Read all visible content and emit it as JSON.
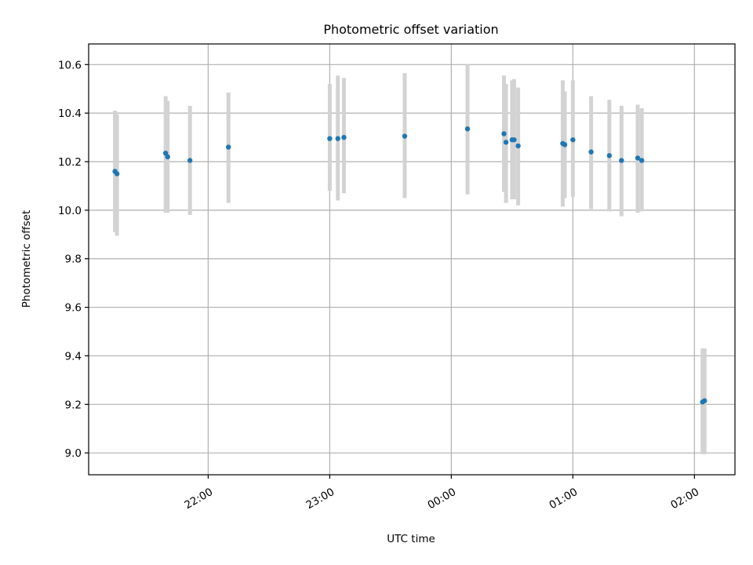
{
  "chart_data": {
    "type": "scatter",
    "title": "Photometric offset variation",
    "xlabel": "UTC time",
    "ylabel": "Photometric offset",
    "xlim": [
      "21:01",
      "02:20"
    ],
    "ylim": [
      8.91,
      10.685
    ],
    "grid": true,
    "x_ticks": [
      "22:00",
      "23:00",
      "00:00",
      "01:00",
      "02:00"
    ],
    "y_ticks": [
      "9.0",
      "9.2",
      "9.4",
      "9.6",
      "9.8",
      "10.0",
      "10.2",
      "10.4",
      "10.6"
    ],
    "point_color": "#1f77b4",
    "errorbar_color": "#d3d3d3",
    "points": [
      {
        "x": "21:14",
        "y": 10.16,
        "ylow": 9.91,
        "yhigh": 10.41
      },
      {
        "x": "21:15",
        "y": 10.15,
        "ylow": 9.895,
        "yhigh": 10.395
      },
      {
        "x": "21:39",
        "y": 10.235,
        "ylow": 9.99,
        "yhigh": 10.47
      },
      {
        "x": "21:40",
        "y": 10.22,
        "ylow": 9.99,
        "yhigh": 10.45
      },
      {
        "x": "21:51",
        "y": 10.205,
        "ylow": 9.98,
        "yhigh": 10.43
      },
      {
        "x": "22:10",
        "y": 10.26,
        "ylow": 10.03,
        "yhigh": 10.485
      },
      {
        "x": "23:00",
        "y": 10.295,
        "ylow": 10.08,
        "yhigh": 10.52
      },
      {
        "x": "23:04",
        "y": 10.295,
        "ylow": 10.04,
        "yhigh": 10.555
      },
      {
        "x": "23:07",
        "y": 10.3,
        "ylow": 10.07,
        "yhigh": 10.545
      },
      {
        "x": "23:37",
        "y": 10.305,
        "ylow": 10.05,
        "yhigh": 10.565
      },
      {
        "x": "00:08",
        "y": 10.335,
        "ylow": 10.065,
        "yhigh": 10.6
      },
      {
        "x": "00:26",
        "y": 10.315,
        "ylow": 10.075,
        "yhigh": 10.555
      },
      {
        "x": "00:27",
        "y": 10.28,
        "ylow": 10.03,
        "yhigh": 10.52
      },
      {
        "x": "00:30",
        "y": 10.29,
        "ylow": 10.045,
        "yhigh": 10.535
      },
      {
        "x": "00:31",
        "y": 10.29,
        "ylow": 10.045,
        "yhigh": 10.54
      },
      {
        "x": "00:33",
        "y": 10.265,
        "ylow": 10.02,
        "yhigh": 10.505
      },
      {
        "x": "00:55",
        "y": 10.275,
        "ylow": 10.015,
        "yhigh": 10.535
      },
      {
        "x": "00:56",
        "y": 10.27,
        "ylow": 10.05,
        "yhigh": 10.49
      },
      {
        "x": "01:00",
        "y": 10.29,
        "ylow": 10.055,
        "yhigh": 10.535
      },
      {
        "x": "01:09",
        "y": 10.24,
        "ylow": 10.005,
        "yhigh": 10.47
      },
      {
        "x": "01:18",
        "y": 10.225,
        "ylow": 9.995,
        "yhigh": 10.455
      },
      {
        "x": "01:24",
        "y": 10.205,
        "ylow": 9.975,
        "yhigh": 10.43
      },
      {
        "x": "01:32",
        "y": 10.215,
        "ylow": 9.99,
        "yhigh": 10.435
      },
      {
        "x": "01:34",
        "y": 10.205,
        "ylow": 9.995,
        "yhigh": 10.42
      },
      {
        "x": "02:04",
        "y": 9.21,
        "ylow": 8.995,
        "yhigh": 9.43
      },
      {
        "x": "02:05",
        "y": 9.215,
        "ylow": 8.995,
        "yhigh": 9.43
      }
    ]
  }
}
